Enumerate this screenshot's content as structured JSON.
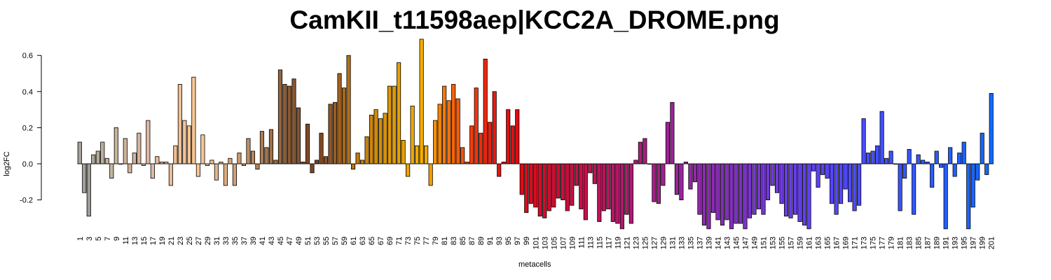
{
  "chart_data": {
    "type": "bar",
    "title": "CamKII_t11598aep|KCC2A_DROME.png",
    "xlabel": "metacells",
    "ylabel": "log2FC",
    "yticks": [
      "-0.2",
      "0.0",
      "0.2",
      "0.4",
      "0.6"
    ],
    "ylim": [
      -0.36,
      0.69
    ],
    "grid": false,
    "legend": "none",
    "categories": [
      "1",
      "2",
      "3",
      "4",
      "5",
      "6",
      "7",
      "8",
      "9",
      "10",
      "11",
      "12",
      "13",
      "14",
      "15",
      "16",
      "17",
      "18",
      "19",
      "20",
      "21",
      "22",
      "23",
      "24",
      "25",
      "26",
      "27",
      "28",
      "29",
      "30",
      "31",
      "32",
      "33",
      "34",
      "35",
      "36",
      "37",
      "38",
      "39",
      "40",
      "41",
      "42",
      "43",
      "44",
      "45",
      "46",
      "47",
      "48",
      "49",
      "50",
      "51",
      "52",
      "53",
      "54",
      "55",
      "56",
      "57",
      "58",
      "59",
      "60",
      "61",
      "62",
      "63",
      "64",
      "65",
      "66",
      "67",
      "68",
      "69",
      "70",
      "71",
      "72",
      "73",
      "74",
      "75",
      "76",
      "77",
      "78",
      "79",
      "80",
      "81",
      "82",
      "83",
      "84",
      "85",
      "86",
      "87",
      "88",
      "89",
      "90",
      "91",
      "92",
      "93",
      "94",
      "95",
      "96",
      "97",
      "98",
      "99",
      "100",
      "101",
      "102",
      "103",
      "104",
      "105",
      "106",
      "107",
      "108",
      "109",
      "110",
      "111",
      "112",
      "113",
      "114",
      "115",
      "116",
      "117",
      "118",
      "119",
      "120",
      "121",
      "122",
      "123",
      "124",
      "125",
      "126",
      "127",
      "128",
      "129",
      "130",
      "131",
      "132",
      "133",
      "134",
      "135",
      "136",
      "137",
      "138",
      "139",
      "140",
      "141",
      "142",
      "143",
      "144",
      "145",
      "146",
      "147",
      "148",
      "149",
      "150",
      "151",
      "152",
      "153",
      "154",
      "155",
      "156",
      "157",
      "158",
      "159",
      "160",
      "161",
      "162",
      "163",
      "164",
      "165",
      "166",
      "167",
      "168",
      "169",
      "170",
      "171",
      "172",
      "173",
      "174",
      "175",
      "176",
      "177",
      "178",
      "179",
      "180",
      "181",
      "182",
      "183",
      "184",
      "185",
      "186",
      "187",
      "188",
      "189",
      "190",
      "191",
      "192",
      "193",
      "194",
      "195",
      "196",
      "197",
      "198",
      "199",
      "200",
      "201"
    ],
    "values": [
      0.12,
      -0.16,
      -0.29,
      0.05,
      0.07,
      0.12,
      0.03,
      -0.08,
      0.2,
      0.0,
      0.14,
      -0.05,
      0.06,
      0.17,
      -0.01,
      0.24,
      -0.08,
      0.04,
      0.01,
      0.01,
      -0.12,
      0.1,
      0.44,
      0.24,
      0.21,
      0.48,
      -0.07,
      0.16,
      -0.01,
      0.02,
      -0.09,
      0.01,
      -0.12,
      0.03,
      -0.12,
      0.06,
      -0.01,
      0.14,
      0.07,
      -0.03,
      0.18,
      0.09,
      0.19,
      0.02,
      0.52,
      0.44,
      0.43,
      0.47,
      0.31,
      0.01,
      0.22,
      -0.05,
      0.02,
      0.17,
      0.04,
      0.33,
      0.34,
      0.5,
      0.42,
      0.6,
      -0.03,
      0.06,
      0.02,
      0.15,
      0.27,
      0.3,
      0.25,
      0.28,
      0.43,
      0.43,
      0.56,
      0.13,
      -0.07,
      0.32,
      0.1,
      0.69,
      0.1,
      -0.12,
      0.24,
      0.33,
      0.43,
      0.35,
      0.44,
      0.36,
      0.09,
      0.01,
      0.21,
      0.42,
      0.17,
      0.58,
      0.23,
      0.4,
      -0.07,
      0.01,
      0.3,
      0.21,
      0.3,
      -0.17,
      -0.27,
      -0.22,
      -0.24,
      -0.29,
      -0.3,
      -0.26,
      -0.24,
      -0.19,
      -0.2,
      -0.26,
      -0.23,
      -0.12,
      -0.25,
      -0.31,
      -0.05,
      -0.11,
      -0.32,
      -0.26,
      -0.25,
      -0.32,
      -0.33,
      -0.36,
      -0.28,
      -0.33,
      0.02,
      0.12,
      0.14,
      0.0,
      -0.21,
      -0.22,
      -0.12,
      0.23,
      0.34,
      -0.17,
      -0.2,
      0.01,
      -0.14,
      -0.1,
      -0.28,
      -0.34,
      -0.36,
      -0.27,
      -0.31,
      -0.34,
      -0.31,
      -0.36,
      -0.33,
      -0.33,
      -0.36,
      -0.3,
      -0.28,
      -0.25,
      -0.28,
      -0.2,
      -0.12,
      -0.16,
      -0.22,
      -0.29,
      -0.3,
      -0.28,
      -0.32,
      -0.34,
      -0.36,
      -0.04,
      -0.13,
      -0.06,
      -0.08,
      -0.22,
      -0.28,
      -0.22,
      -0.14,
      -0.21,
      -0.26,
      -0.23,
      0.25,
      0.06,
      0.07,
      0.1,
      0.29,
      0.03,
      0.07,
      0.0,
      -0.26,
      -0.08,
      0.08,
      -0.28,
      0.05,
      0.02,
      0.01,
      -0.13,
      0.07,
      -0.02,
      -0.36,
      0.09,
      -0.07,
      0.06,
      0.12,
      -0.36,
      -0.24,
      -0.09,
      0.17,
      -0.06,
      0.39
    ],
    "colors": [
      "#a6a29a",
      "#a39f99",
      "#a09b97",
      "#aca698",
      "#b3ab9a",
      "#bbb09b",
      "#c0b39b",
      "#c4b49b",
      "#c8b49a",
      "#cdb49a",
      "#d0b39a",
      "#d3b29b",
      "#d6b39c",
      "#d9b49e",
      "#dcb59f",
      "#dfb7a1",
      "#e1b9a1",
      "#e3baa0",
      "#e6bb9e",
      "#e8bc9d",
      "#eabd9a",
      "#ecbe97",
      "#efc096",
      "#f2c295",
      "#f5c494",
      "#f7c693",
      "#f8c793",
      "#f7c595",
      "#f3c295",
      "#edbc91",
      "#e8b78c",
      "#e2b287",
      "#ddac82",
      "#d7a67d",
      "#d1a078",
      "#cb9a72",
      "#c5946c",
      "#bf8e66",
      "#b98860",
      "#b3825a",
      "#ad7c54",
      "#a7764e",
      "#a17048",
      "#9b6a42",
      "#95643c",
      "#8f5e36",
      "#8a5a33",
      "#875732",
      "#845331",
      "#814f2e",
      "#7f4b2a",
      "#7b4624",
      "#7d4622",
      "#824a22",
      "#8a5022",
      "#925622",
      "#9a5c20",
      "#a2621f",
      "#aa681c",
      "#b26e19",
      "#b87316",
      "#be7813",
      "#c37d11",
      "#c8820f",
      "#cd870d",
      "#d28c0c",
      "#d6900b",
      "#da940a",
      "#de9809",
      "#e29c08",
      "#e59f07",
      "#e8a206",
      "#eba505",
      "#eea804",
      "#f1ab03",
      "#f4ac02",
      "#f5a902",
      "#f59e03",
      "#f59205",
      "#f58606",
      "#f57b07",
      "#f57009",
      "#f5660a",
      "#f55c0b",
      "#f5520c",
      "#f4480d",
      "#f23f0d",
      "#f0360e",
      "#ee2e0e",
      "#ec270e",
      "#ea200e",
      "#e81a0e",
      "#e6150e",
      "#e5110e",
      "#e40e0e",
      "#e30c0e",
      "#e10b10",
      "#df0b14",
      "#dd0b18",
      "#db0b1c",
      "#d90b20",
      "#d70b24",
      "#d50b28",
      "#d30c2c",
      "#d10c30",
      "#cf0c34",
      "#cd0d38",
      "#cb0d3c",
      "#c90e40",
      "#c70e44",
      "#c50f48",
      "#c3104c",
      "#c11150",
      "#bf1254",
      "#bd1358",
      "#bb145c",
      "#b91560",
      "#b71664",
      "#b51768",
      "#b3186c",
      "#b11970",
      "#af1a74",
      "#ad1b78",
      "#ab1c7c",
      "#a91d80",
      "#a71e84",
      "#a51f88",
      "#a3208c",
      "#a12190",
      "#9f2294",
      "#9d2398",
      "#9b249c",
      "#99259f",
      "#9726a2",
      "#9527a6",
      "#9328a9",
      "#9129ac",
      "#8f2aaf",
      "#8d2bb2",
      "#8b2cb5",
      "#892db8",
      "#872ebb",
      "#852fbe",
      "#8330c1",
      "#8131c4",
      "#7f32c7",
      "#7d33ca",
      "#7b34cd",
      "#7935d0",
      "#7736d3",
      "#7537d6",
      "#7338d9",
      "#7139dc",
      "#6f3adf",
      "#6d3be2",
      "#6b3ce5",
      "#693de8",
      "#673eeb",
      "#653fee",
      "#6340f1",
      "#6141f4",
      "#5f42f7",
      "#5d43fa",
      "#5b44fd",
      "#5945ff",
      "#5746ff",
      "#5547ff",
      "#5348ff",
      "#5149ff",
      "#4f4aff",
      "#4d4bff",
      "#4b4cff",
      "#494dff",
      "#474eff",
      "#454fff",
      "#4350ff",
      "#4151ff",
      "#3f52ff",
      "#3d53ff",
      "#3b54ff",
      "#3955ff",
      "#3756ff",
      "#3557ff",
      "#3358ff",
      "#3159ff",
      "#2f5aff",
      "#2d5bff",
      "#2b5cff",
      "#295dff",
      "#275eff",
      "#255fff",
      "#2360ff",
      "#2161ff",
      "#1f62ff",
      "#1d63ff",
      "#1b64ff",
      "#1965ff",
      "#1766ff",
      "#1567ff",
      "#1368ff",
      "#1169ff",
      "#0f6aff"
    ]
  }
}
